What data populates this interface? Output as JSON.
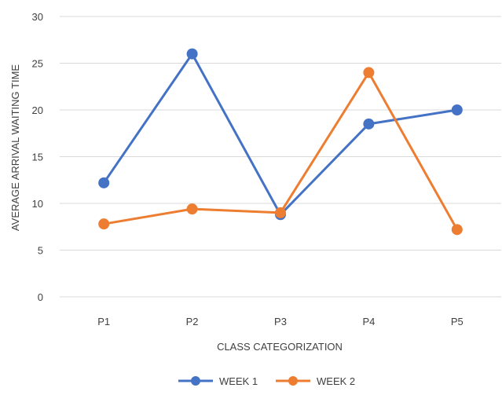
{
  "chart_data": {
    "type": "line",
    "title": "",
    "xlabel": "CLASS CATEGORIZATION",
    "ylabel": "AVERAGE ARRIVAL WAITING TIME",
    "categories": [
      "P1",
      "P2",
      "P3",
      "P4",
      "P5"
    ],
    "ylim": [
      0,
      30
    ],
    "yticks": [
      0,
      5,
      10,
      15,
      20,
      25,
      30
    ],
    "grid": true,
    "legend": "bottom",
    "series": [
      {
        "name": "WEEK 1",
        "color": "#4472C4",
        "values": [
          12.2,
          26,
          8.8,
          18.5,
          20
        ]
      },
      {
        "name": "WEEK 2",
        "color": "#ED7D31",
        "values": [
          7.8,
          9.4,
          9,
          24,
          7.2
        ]
      }
    ]
  }
}
